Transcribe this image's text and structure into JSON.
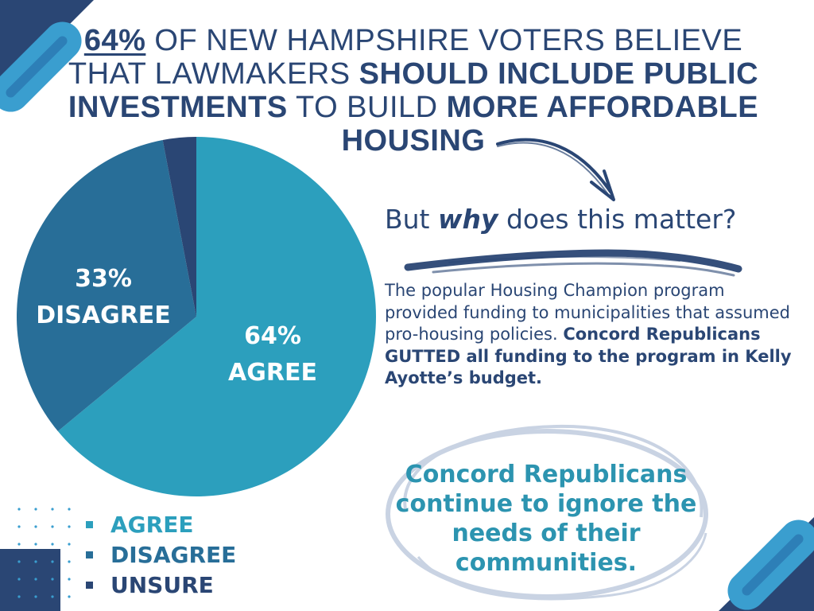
{
  "header": {
    "pct": "64%",
    "seg1": " OF NEW HAMPSHIRE VOTERS BELIEVE THAT LAWMAKERS ",
    "seg2": "SHOULD INCLUDE PUBLIC INVESTMENTS",
    "seg3": " TO BUILD ",
    "seg4": "MORE AFFORDABLE HOUSING"
  },
  "question": {
    "pre": "But ",
    "emph": "why",
    "post": " does this matter?"
  },
  "body": {
    "plain": "The popular Housing Champion program provided funding to municipalities that assumed pro-housing policies. ",
    "bold": "Concord Republicans GUTTED all funding to the program in Kelly Ayotte’s budget."
  },
  "callout": "Concord Republicans continue to ignore the needs of their communities.",
  "colors": {
    "agree": "#2c9fbd",
    "disagree": "#286e98",
    "unsure": "#2a4674",
    "navy": "#2a4674",
    "teal": "#2c94b0",
    "light_blue": "#3a9ecf",
    "circle": "#c9d3e3"
  },
  "chart_data": {
    "type": "pie",
    "values": [
      64,
      33,
      3
    ],
    "categories": [
      "AGREE",
      "DISAGREE",
      "UNSURE"
    ],
    "slice_labels": [
      {
        "pct": "64%",
        "label": "AGREE"
      },
      {
        "pct": "33%",
        "label": "DISAGREE"
      }
    ],
    "legend": [
      {
        "label": "AGREE",
        "color": "#2c9fbd"
      },
      {
        "label": "DISAGREE",
        "color": "#286e98"
      },
      {
        "label": "UNSURE",
        "color": "#2a4674"
      }
    ],
    "legend_position": "bottom-left",
    "colors": [
      "#2c9fbd",
      "#286e98",
      "#2a4674"
    ]
  },
  "decor": {
    "arrow": "arrow-icon",
    "brush": "brush-stroke",
    "circle": "hand-drawn-circle",
    "capsule": "capsule-shape",
    "dots": "dot-grid"
  }
}
